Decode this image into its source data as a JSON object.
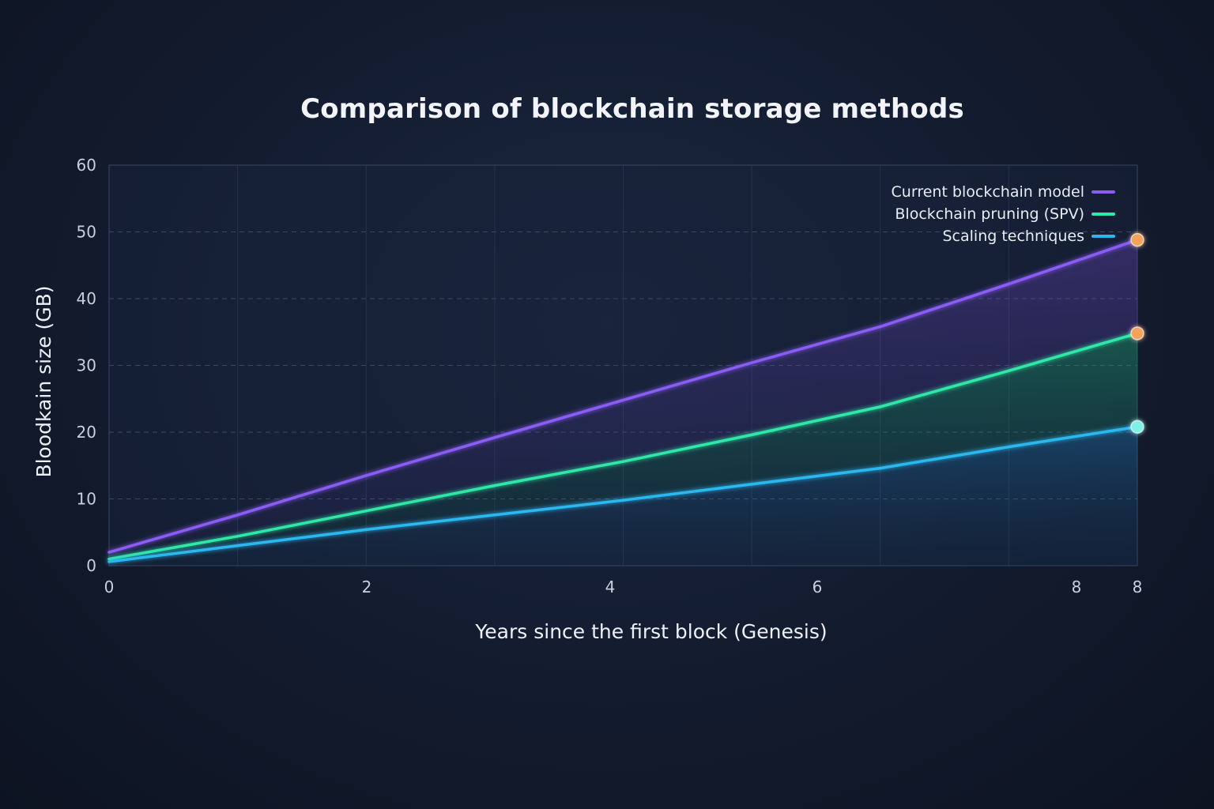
{
  "chart_data": {
    "type": "line",
    "title": "Comparison of blockchain storage methods",
    "xlabel": "Years since the first block (Genesis)",
    "ylabel": "Bloodkain size (GB)",
    "xlim": [
      0,
      8
    ],
    "ylim": [
      0,
      60
    ],
    "x_ticks": [
      "0",
      "2",
      "4",
      "6",
      "8",
      "8"
    ],
    "y_ticks": [
      "0",
      "10",
      "20",
      "30",
      "40",
      "50",
      "60"
    ],
    "grid": true,
    "legend_position": "top-right",
    "x": [
      0,
      1,
      2,
      3,
      4,
      5,
      6,
      7,
      8
    ],
    "series": [
      {
        "name": "Current blockchain model",
        "color": "#8b5cf6",
        "end_marker_color": "#f5a35c",
        "values": [
          2.0,
          7.6,
          13.5,
          19.2,
          24.8,
          30.4,
          35.8,
          42.2,
          48.8
        ]
      },
      {
        "name": "Blockchain pruning (SPV)",
        "color": "#2ee8a8",
        "end_marker_color": "#f5a35c",
        "values": [
          1.0,
          4.4,
          8.2,
          12.0,
          15.6,
          19.6,
          23.8,
          29.2,
          34.8
        ]
      },
      {
        "name": "Scaling techniques",
        "color": "#2bb8f0",
        "end_marker_color": "#7ff0e6",
        "values": [
          0.6,
          3.0,
          5.4,
          7.6,
          9.8,
          12.2,
          14.6,
          17.8,
          20.8
        ]
      }
    ]
  }
}
